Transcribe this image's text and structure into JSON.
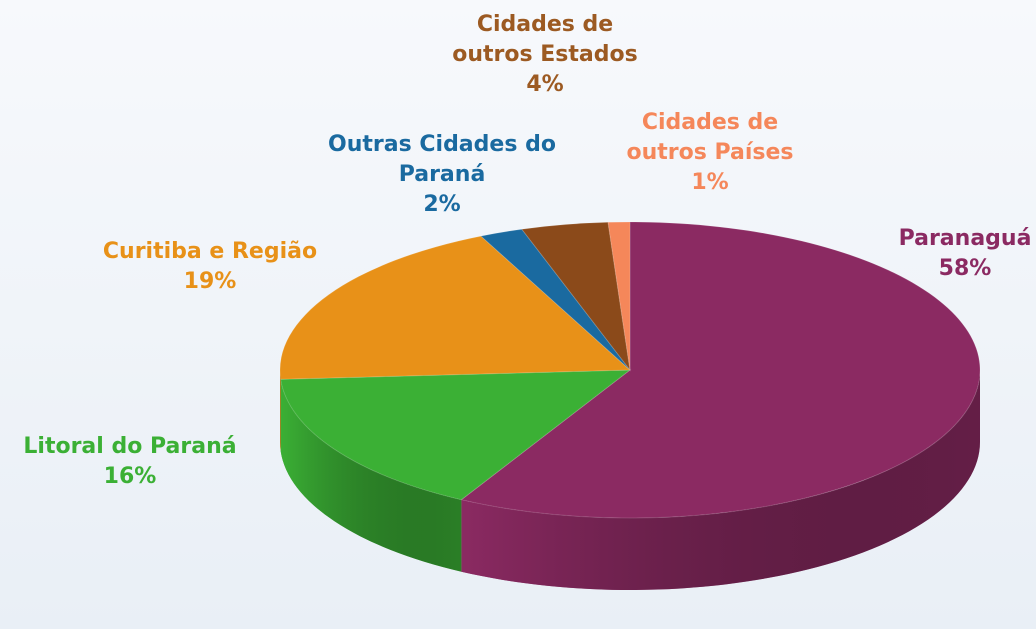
{
  "chart_data": {
    "type": "pie",
    "categories": [
      "Paranaguá",
      "Litoral do Paraná",
      "Curitiba e Região",
      "Outras Cidades do Paraná",
      "Cidades de outros Estados",
      "Cidades de outros Países"
    ],
    "values": [
      58,
      16,
      19,
      2,
      4,
      1
    ],
    "value_labels": [
      "58%",
      "16%",
      "19%",
      "2%",
      "4%",
      "1%"
    ],
    "colors": [
      "#8b2a62",
      "#3bb035",
      "#e89118",
      "#1a6aa0",
      "#8b4a1a",
      "#f5875a"
    ]
  }
}
